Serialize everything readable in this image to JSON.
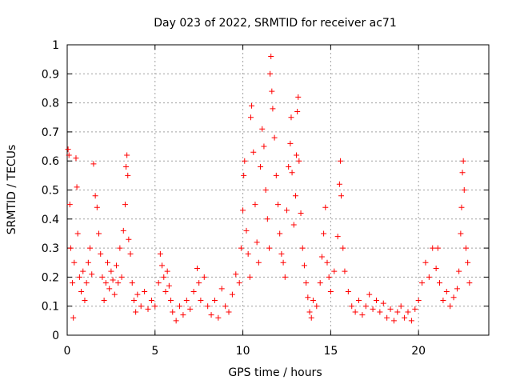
{
  "chart_data": {
    "type": "scatter",
    "title": "Day 023 of 2022, SRMTID for receiver ac71",
    "xlabel": "GPS time / hours",
    "ylabel": "SRMTID / TECUs",
    "xlim": [
      0,
      24
    ],
    "ylim": [
      0,
      1
    ],
    "xticks": [
      0,
      5,
      10,
      15,
      20
    ],
    "yticks": [
      0,
      0.1,
      0.2,
      0.3,
      0.4,
      0.5,
      0.6,
      0.7,
      0.8,
      0.9,
      1
    ],
    "grid": true,
    "marker": "+",
    "color": "#ff0000",
    "series": [
      {
        "name": "SRMTID",
        "points": [
          [
            0.05,
            0.64
          ],
          [
            0.1,
            0.62
          ],
          [
            0.15,
            0.45
          ],
          [
            0.2,
            0.3
          ],
          [
            0.3,
            0.18
          ],
          [
            0.35,
            0.06
          ],
          [
            0.4,
            0.25
          ],
          [
            0.5,
            0.61
          ],
          [
            0.55,
            0.51
          ],
          [
            0.6,
            0.35
          ],
          [
            0.7,
            0.2
          ],
          [
            0.8,
            0.15
          ],
          [
            0.9,
            0.22
          ],
          [
            1.0,
            0.12
          ],
          [
            1.1,
            0.18
          ],
          [
            1.2,
            0.25
          ],
          [
            1.3,
            0.3
          ],
          [
            1.4,
            0.21
          ],
          [
            1.5,
            0.59
          ],
          [
            1.6,
            0.48
          ],
          [
            1.7,
            0.44
          ],
          [
            1.8,
            0.35
          ],
          [
            1.9,
            0.28
          ],
          [
            2.0,
            0.2
          ],
          [
            2.1,
            0.12
          ],
          [
            2.2,
            0.18
          ],
          [
            2.3,
            0.25
          ],
          [
            2.4,
            0.16
          ],
          [
            2.5,
            0.22
          ],
          [
            2.6,
            0.19
          ],
          [
            2.7,
            0.14
          ],
          [
            2.8,
            0.24
          ],
          [
            2.9,
            0.18
          ],
          [
            3.0,
            0.3
          ],
          [
            3.1,
            0.2
          ],
          [
            3.2,
            0.36
          ],
          [
            3.3,
            0.45
          ],
          [
            3.35,
            0.58
          ],
          [
            3.4,
            0.62
          ],
          [
            3.45,
            0.55
          ],
          [
            3.5,
            0.33
          ],
          [
            3.6,
            0.28
          ],
          [
            3.7,
            0.18
          ],
          [
            3.8,
            0.12
          ],
          [
            3.9,
            0.08
          ],
          [
            4.0,
            0.14
          ],
          [
            4.2,
            0.1
          ],
          [
            4.4,
            0.15
          ],
          [
            4.6,
            0.09
          ],
          [
            4.8,
            0.12
          ],
          [
            5.0,
            0.1
          ],
          [
            5.2,
            0.18
          ],
          [
            5.3,
            0.28
          ],
          [
            5.4,
            0.24
          ],
          [
            5.5,
            0.2
          ],
          [
            5.6,
            0.15
          ],
          [
            5.7,
            0.22
          ],
          [
            5.8,
            0.17
          ],
          [
            5.9,
            0.12
          ],
          [
            6.0,
            0.08
          ],
          [
            6.2,
            0.05
          ],
          [
            6.4,
            0.1
          ],
          [
            6.6,
            0.07
          ],
          [
            6.8,
            0.12
          ],
          [
            7.0,
            0.09
          ],
          [
            7.2,
            0.15
          ],
          [
            7.4,
            0.23
          ],
          [
            7.5,
            0.18
          ],
          [
            7.6,
            0.12
          ],
          [
            7.8,
            0.2
          ],
          [
            8.0,
            0.1
          ],
          [
            8.2,
            0.07
          ],
          [
            8.4,
            0.12
          ],
          [
            8.6,
            0.06
          ],
          [
            8.8,
            0.16
          ],
          [
            9.0,
            0.1
          ],
          [
            9.2,
            0.08
          ],
          [
            9.4,
            0.14
          ],
          [
            9.6,
            0.21
          ],
          [
            9.8,
            0.18
          ],
          [
            9.9,
            0.3
          ],
          [
            10.0,
            0.43
          ],
          [
            10.05,
            0.55
          ],
          [
            10.1,
            0.6
          ],
          [
            10.2,
            0.36
          ],
          [
            10.3,
            0.28
          ],
          [
            10.4,
            0.2
          ],
          [
            10.45,
            0.75
          ],
          [
            10.5,
            0.79
          ],
          [
            10.6,
            0.63
          ],
          [
            10.7,
            0.45
          ],
          [
            10.8,
            0.32
          ],
          [
            10.9,
            0.25
          ],
          [
            11.0,
            0.58
          ],
          [
            11.1,
            0.71
          ],
          [
            11.2,
            0.65
          ],
          [
            11.3,
            0.5
          ],
          [
            11.4,
            0.4
          ],
          [
            11.5,
            0.3
          ],
          [
            11.55,
            0.9
          ],
          [
            11.6,
            0.96
          ],
          [
            11.65,
            0.84
          ],
          [
            11.7,
            0.78
          ],
          [
            11.8,
            0.68
          ],
          [
            11.9,
            0.55
          ],
          [
            12.0,
            0.45
          ],
          [
            12.1,
            0.35
          ],
          [
            12.2,
            0.28
          ],
          [
            12.3,
            0.25
          ],
          [
            12.4,
            0.2
          ],
          [
            12.5,
            0.43
          ],
          [
            12.6,
            0.58
          ],
          [
            12.7,
            0.66
          ],
          [
            12.75,
            0.75
          ],
          [
            12.8,
            0.56
          ],
          [
            12.9,
            0.38
          ],
          [
            13.0,
            0.48
          ],
          [
            13.05,
            0.62
          ],
          [
            13.1,
            0.77
          ],
          [
            13.15,
            0.82
          ],
          [
            13.2,
            0.6
          ],
          [
            13.3,
            0.42
          ],
          [
            13.4,
            0.3
          ],
          [
            13.5,
            0.24
          ],
          [
            13.6,
            0.18
          ],
          [
            13.7,
            0.13
          ],
          [
            13.8,
            0.08
          ],
          [
            13.9,
            0.06
          ],
          [
            14.0,
            0.12
          ],
          [
            14.2,
            0.1
          ],
          [
            14.4,
            0.18
          ],
          [
            14.5,
            0.27
          ],
          [
            14.6,
            0.35
          ],
          [
            14.7,
            0.44
          ],
          [
            14.8,
            0.25
          ],
          [
            14.9,
            0.2
          ],
          [
            15.0,
            0.15
          ],
          [
            15.2,
            0.22
          ],
          [
            15.4,
            0.34
          ],
          [
            15.5,
            0.52
          ],
          [
            15.55,
            0.6
          ],
          [
            15.6,
            0.48
          ],
          [
            15.7,
            0.3
          ],
          [
            15.8,
            0.22
          ],
          [
            16.0,
            0.15
          ],
          [
            16.2,
            0.1
          ],
          [
            16.4,
            0.08
          ],
          [
            16.6,
            0.12
          ],
          [
            16.8,
            0.07
          ],
          [
            17.0,
            0.1
          ],
          [
            17.2,
            0.14
          ],
          [
            17.4,
            0.09
          ],
          [
            17.6,
            0.12
          ],
          [
            17.8,
            0.08
          ],
          [
            18.0,
            0.11
          ],
          [
            18.2,
            0.06
          ],
          [
            18.4,
            0.09
          ],
          [
            18.6,
            0.05
          ],
          [
            18.8,
            0.08
          ],
          [
            19.0,
            0.1
          ],
          [
            19.2,
            0.06
          ],
          [
            19.4,
            0.08
          ],
          [
            19.6,
            0.05
          ],
          [
            19.8,
            0.09
          ],
          [
            20.0,
            0.12
          ],
          [
            20.2,
            0.18
          ],
          [
            20.4,
            0.25
          ],
          [
            20.6,
            0.2
          ],
          [
            20.8,
            0.3
          ],
          [
            21.0,
            0.23
          ],
          [
            21.1,
            0.3
          ],
          [
            21.2,
            0.18
          ],
          [
            21.4,
            0.12
          ],
          [
            21.6,
            0.15
          ],
          [
            21.8,
            0.1
          ],
          [
            22.0,
            0.13
          ],
          [
            22.2,
            0.16
          ],
          [
            22.3,
            0.22
          ],
          [
            22.4,
            0.35
          ],
          [
            22.45,
            0.44
          ],
          [
            22.5,
            0.56
          ],
          [
            22.55,
            0.6
          ],
          [
            22.6,
            0.5
          ],
          [
            22.7,
            0.3
          ],
          [
            22.8,
            0.25
          ],
          [
            22.9,
            0.18
          ]
        ]
      }
    ]
  }
}
